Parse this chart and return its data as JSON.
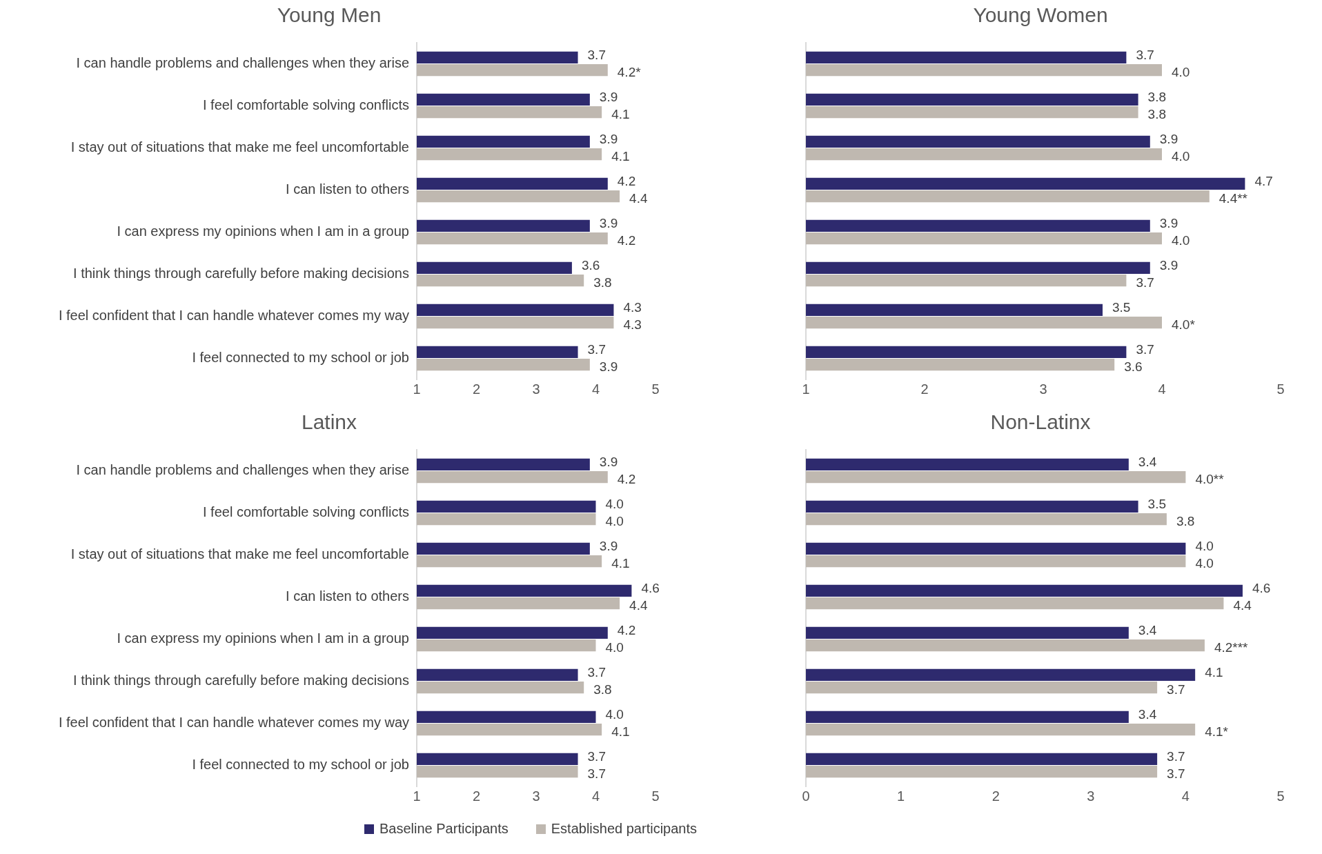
{
  "chart_data": [
    {
      "type": "bar",
      "orientation": "horizontal",
      "title": "Young Men",
      "categories": [
        "I can handle problems and challenges when they arise",
        "I feel comfortable solving conflicts",
        "I stay out of situations that make me feel uncomfortable",
        "I can listen to others",
        "I can express my opinions when I am in a group",
        "I think things through carefully before making decisions",
        "I feel confident that I can handle whatever comes my way",
        "I feel connected to my school or job"
      ],
      "series": [
        {
          "color": "#2e2a6e",
          "values": [
            3.7,
            3.9,
            3.9,
            4.2,
            3.9,
            3.6,
            4.3,
            3.7
          ],
          "value_labels": [
            "3.7",
            "3.9",
            "3.9",
            "4.2",
            "3.9",
            "3.6",
            "4.3",
            "3.7"
          ]
        },
        {
          "color": "#bfb8b0",
          "values": [
            4.2,
            4.1,
            4.1,
            4.4,
            4.2,
            3.8,
            4.3,
            3.9
          ],
          "value_labels": [
            "4.2*",
            "4.1",
            "4.1",
            "4.4",
            "4.2",
            "3.8",
            "4.3",
            "3.9"
          ]
        }
      ],
      "xlim": [
        1,
        5
      ],
      "xticks": [
        1,
        2,
        3,
        4,
        5
      ],
      "grid": false,
      "legend": false
    },
    {
      "type": "bar",
      "orientation": "horizontal",
      "title": "Young Women",
      "categories": [
        null,
        null,
        null,
        null,
        null,
        null,
        null,
        null
      ],
      "series": [
        {
          "color": "#2e2a6e",
          "values": [
            3.7,
            3.8,
            3.9,
            4.7,
            3.9,
            3.9,
            3.5,
            3.7
          ],
          "value_labels": [
            "3.7",
            "3.8",
            "3.9",
            "4.7",
            "3.9",
            "3.9",
            "3.5",
            "3.7"
          ]
        },
        {
          "color": "#bfb8b0",
          "values": [
            4.0,
            3.8,
            4.0,
            4.4,
            4.0,
            3.7,
            4.0,
            3.6
          ],
          "value_labels": [
            "4.0",
            "3.8",
            "4.0",
            "4.4**",
            "4.0",
            "3.7",
            "4.0*",
            "3.6"
          ]
        }
      ],
      "xlim": [
        1,
        5
      ],
      "xticks": [
        1,
        2,
        3,
        4,
        5
      ],
      "grid": false,
      "legend": false,
      "tick_labels": "x"
    },
    {
      "type": "bar",
      "orientation": "horizontal",
      "title": "Latinx",
      "categories": [
        "I can handle problems and challenges when they arise",
        "I feel comfortable solving conflicts",
        "I stay out of situations that make me feel uncomfortable",
        "I can listen to others",
        "I can express my opinions when I am in a group",
        "I think things through carefully before making decisions",
        "I feel confident that I can handle whatever comes my way",
        "I feel connected to my school or job"
      ],
      "series": [
        {
          "name": "Baseline Participants",
          "color": "#2e2a6e",
          "values": [
            3.9,
            4.0,
            3.9,
            4.6,
            4.2,
            3.7,
            4.0,
            3.7
          ],
          "value_labels": [
            "3.9",
            "4.0",
            "3.9",
            "4.6",
            "4.2",
            "3.7",
            "4.0",
            "3.7"
          ]
        },
        {
          "name": "Established participants",
          "color": "#bfb8b0",
          "values": [
            4.2,
            4.0,
            4.1,
            4.4,
            4.0,
            3.8,
            4.1,
            3.7
          ],
          "value_labels": [
            "4.2",
            "4.0",
            "4.1",
            "4.4",
            "4.0",
            "3.8",
            "4.1",
            "3.7"
          ]
        }
      ],
      "xlim": [
        1,
        5
      ],
      "xticks": [
        1,
        2,
        3,
        4,
        5
      ],
      "grid": false,
      "legend": "bottom"
    },
    {
      "type": "bar",
      "orientation": "horizontal",
      "title": "Non-Latinx",
      "categories": [
        null,
        null,
        null,
        null,
        null,
        null,
        null,
        null
      ],
      "series": [
        {
          "color": "#2e2a6e",
          "values": [
            3.4,
            3.5,
            4.0,
            4.6,
            3.4,
            4.1,
            3.4,
            3.7
          ],
          "value_labels": [
            "3.4",
            "3.5",
            "4.0",
            "4.6",
            "3.4",
            "4.1",
            "3.4",
            "3.7"
          ]
        },
        {
          "color": "#bfb8b0",
          "values": [
            4.0,
            3.8,
            4.0,
            4.4,
            4.2,
            3.7,
            4.1,
            3.7
          ],
          "value_labels": [
            "4.0**",
            "3.8",
            "4.0",
            "4.4",
            "4.2***",
            "3.7",
            "4.1*",
            "3.7"
          ]
        }
      ],
      "xlim": [
        0,
        5
      ],
      "xticks": [
        0,
        1,
        2,
        3,
        4,
        5
      ],
      "grid": false,
      "legend": false,
      "tick_labels": "x"
    }
  ]
}
